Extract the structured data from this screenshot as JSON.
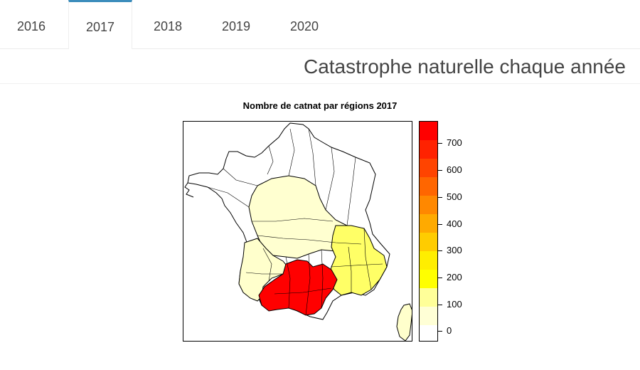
{
  "tabs": [
    {
      "label": "2016",
      "active": false
    },
    {
      "label": "2017",
      "active": true
    },
    {
      "label": "2018",
      "active": false
    },
    {
      "label": "2019",
      "active": false
    },
    {
      "label": "2020",
      "active": false
    }
  ],
  "header": {
    "title": "Catastrophe naturelle chaque année"
  },
  "chart_data": {
    "type": "heatmap",
    "title": "Nombre de catnat par régions 2017",
    "legend": {
      "placement": "right",
      "range": [
        0,
        780
      ],
      "ticks": [
        0,
        100,
        200,
        300,
        400,
        500,
        600,
        700
      ],
      "colors": [
        "#ffffff",
        "#ffffd6",
        "#ffff99",
        "#ffff00",
        "#ffee00",
        "#ffcc00",
        "#ffaa00",
        "#ff8800",
        "#ff6600",
        "#ff4400",
        "#ff2200",
        "#ff0000"
      ]
    },
    "regions": [
      {
        "area": "north",
        "approx_value": 0,
        "color": "#ffffff"
      },
      {
        "area": "center",
        "approx_value": 60,
        "color": "#ffffd0"
      },
      {
        "area": "southwest",
        "approx_value": 80,
        "color": "#ffffcc"
      },
      {
        "area": "southeast",
        "approx_value": 180,
        "color": "#ffff66"
      },
      {
        "area": "south",
        "approx_value": 770,
        "color": "#ff0000"
      },
      {
        "area": "corsica",
        "approx_value": 60,
        "color": "#ffffcc"
      }
    ]
  }
}
